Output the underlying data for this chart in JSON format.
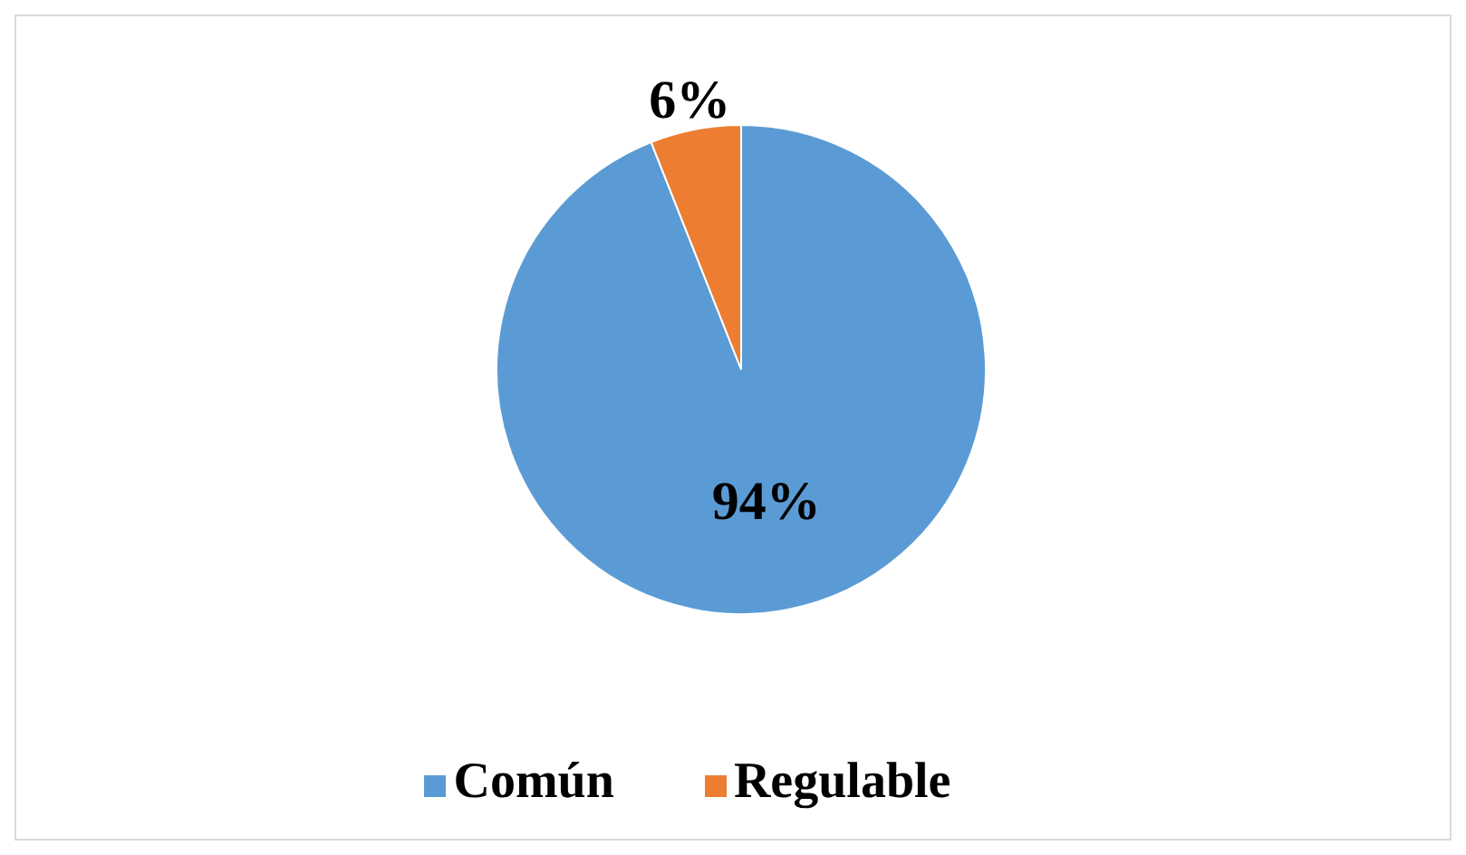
{
  "chart_data": {
    "type": "pie",
    "categories": [
      "Común",
      "Regulable"
    ],
    "values": [
      94,
      6
    ],
    "colors": [
      "#5b9bd5",
      "#ed7d31"
    ],
    "value_labels": [
      "94%",
      "6%"
    ],
    "legend": "bottom"
  }
}
